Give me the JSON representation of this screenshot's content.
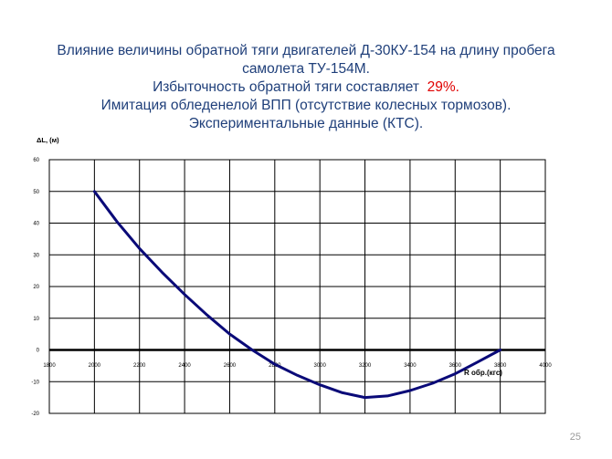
{
  "slide": {
    "title_lines": [
      "Влияние величины обратной тяги двигателей Д-30КУ-154 на длину пробега",
      "самолета ТУ-154М."
    ],
    "title_line3_prefix": "Избыточность обратной тяги составляет",
    "title_line3_accent": "29%.",
    "title_line4": "Имитация обледенелой ВПП (отсутствие колесных тормозов).",
    "title_line5": "Экспериментальные данные (КТС).",
    "slide_number": "25",
    "accent_color": "#e00000",
    "title_color": "#1f3f7a"
  },
  "chart_data": {
    "type": "line",
    "ylabel": "ΔL, (м)",
    "xlabel": "R обр.(кгс)",
    "xlim": [
      1800,
      4000
    ],
    "ylim": [
      -20,
      60
    ],
    "x_ticks": [
      "1800",
      "2000",
      "2200",
      "2400",
      "2600",
      "2800",
      "3000",
      "3200",
      "3400",
      "3600",
      "3800",
      "4000"
    ],
    "y_ticks": [
      "60",
      "50",
      "40",
      "30",
      "20",
      "10",
      "0",
      "-10",
      "-20"
    ],
    "grid": true,
    "line_color": "#0a0a78",
    "series": [
      {
        "x": [
          2000,
          2100,
          2200,
          2300,
          2400,
          2500,
          2600,
          2700,
          2800,
          2900,
          3000,
          3100,
          3200,
          3300,
          3400,
          3500,
          3600,
          3700,
          3800
        ],
        "y": [
          50,
          40.5,
          32,
          24.5,
          17.5,
          11,
          5,
          0,
          -4.5,
          -8,
          -11,
          -13.5,
          -15,
          -14.5,
          -12.8,
          -10.5,
          -7.5,
          -3.8,
          0
        ]
      }
    ]
  }
}
